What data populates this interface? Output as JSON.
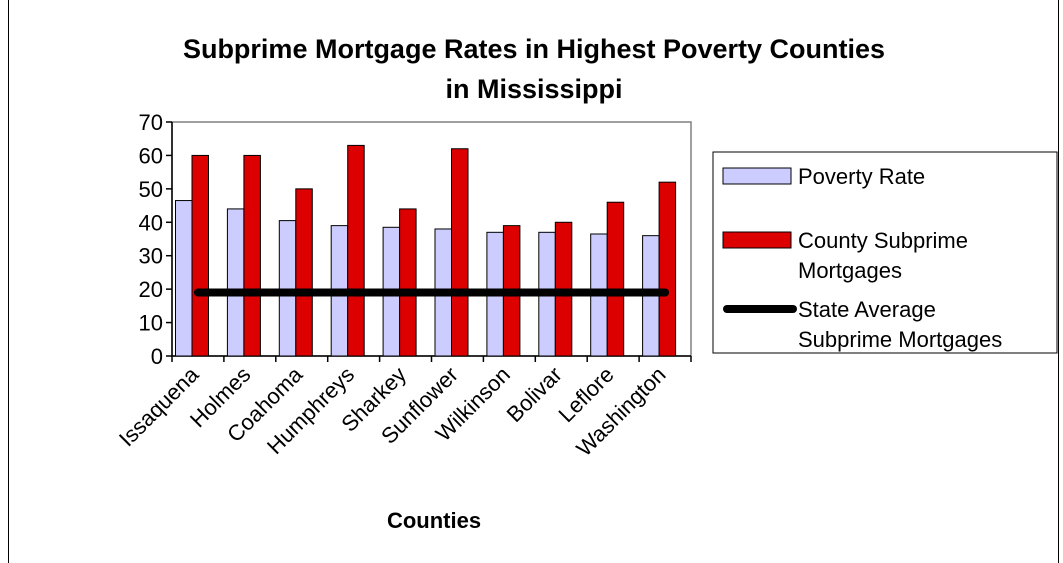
{
  "chart_data": {
    "type": "bar",
    "title_lines": [
      "Subprime Mortgage Rates in Highest Poverty Counties",
      "in Mississippi"
    ],
    "xlabel": "Counties",
    "ylabel": "",
    "ylim": [
      0,
      70
    ],
    "yticks": [
      0,
      10,
      20,
      30,
      40,
      50,
      60,
      70
    ],
    "categories": [
      "Issaquena",
      "Holmes",
      "Coahoma",
      "Humphreys",
      "Sharkey",
      "Sunflower",
      "Wilkinson",
      "Bolivar",
      "Leflore",
      "Washington"
    ],
    "series": [
      {
        "name": "Poverty Rate",
        "kind": "bar",
        "color": "#ccccff",
        "values": [
          46.5,
          44,
          40.5,
          39,
          38.5,
          38,
          37,
          37,
          36.5,
          36
        ]
      },
      {
        "name": "County Subprime Mortgages",
        "kind": "bar",
        "color": "#dd0000",
        "values": [
          60,
          60,
          50,
          63,
          44,
          62,
          39,
          40,
          46,
          52
        ]
      },
      {
        "name": "State Average Subprime Mortgages",
        "kind": "line",
        "color": "#000000",
        "values": [
          19,
          19,
          19,
          19,
          19,
          19,
          19,
          19,
          19,
          19
        ]
      }
    ],
    "legend_lines": [
      [
        "Poverty Rate"
      ],
      [
        "County Subprime",
        "Mortgages"
      ],
      [
        "State Average",
        "Subprime Mortgages"
      ]
    ],
    "legend_position": "right",
    "grid": false
  }
}
